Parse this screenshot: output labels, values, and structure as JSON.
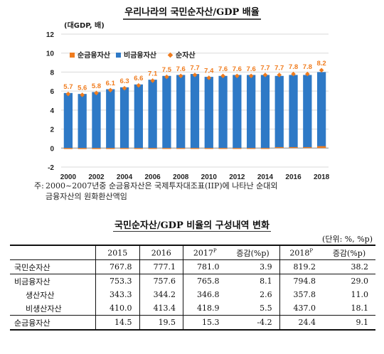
{
  "chart_title": "우리나라의 국민순자산/GDP 배율",
  "note": {
    "prefix": "주:",
    "line1": "2000~2007년중 순금융자산은 국제투자대조표(IIP)에 나타난 순대외",
    "line2": "금융자산의 원화환산액임"
  },
  "chart_data": {
    "type": "bar",
    "title": "우리나라의 국민순자산/GDP 배율",
    "ylabel": "(대GDP, 배)",
    "ylim": [
      -2,
      12
    ],
    "yticks": [
      -2,
      0,
      2,
      4,
      6,
      8,
      10,
      12
    ],
    "x": [
      2000,
      2001,
      2002,
      2003,
      2004,
      2005,
      2006,
      2007,
      2008,
      2009,
      2010,
      2011,
      2012,
      2013,
      2014,
      2015,
      2016,
      2017,
      2018
    ],
    "xtick_labels": [
      "2000",
      "2002",
      "2004",
      "2006",
      "2008",
      "2010",
      "2012",
      "2014",
      "2016",
      "2018"
    ],
    "legend_position": "top-left",
    "series": [
      {
        "name": "순금융자산",
        "kind": "bar",
        "color": "#f07c1e",
        "values": [
          -0.1,
          -0.1,
          -0.1,
          -0.1,
          -0.05,
          -0.05,
          -0.05,
          -0.05,
          -0.05,
          -0.05,
          -0.05,
          -0.05,
          -0.05,
          -0.05,
          0.0,
          0.1,
          0.1,
          0.1,
          0.2
        ]
      },
      {
        "name": "비금융자산",
        "kind": "bar",
        "color": "#2e79c6",
        "values": [
          5.8,
          5.7,
          5.9,
          6.2,
          6.4,
          6.7,
          7.2,
          7.6,
          7.7,
          7.8,
          7.5,
          7.6,
          7.7,
          7.7,
          7.7,
          7.6,
          7.7,
          7.7,
          8.0
        ]
      },
      {
        "name": "순자산",
        "kind": "marker",
        "color": "#f07c1e",
        "values": [
          5.7,
          5.6,
          5.8,
          6.1,
          6.3,
          6.6,
          7.1,
          7.5,
          7.6,
          7.7,
          7.4,
          7.6,
          7.6,
          7.6,
          7.7,
          7.7,
          7.8,
          7.8,
          8.2
        ],
        "labels": [
          "5.7",
          "5.6",
          "5.8",
          "6.1",
          "6.3",
          "6.6",
          "7.1",
          "7.5",
          "7.6",
          "7.7",
          "7.4",
          "7.6",
          "7.6",
          "7.6",
          "7.7",
          "7.7",
          "7.8",
          "7.8",
          "8.2"
        ]
      }
    ]
  },
  "table": {
    "title": "국민순자산/GDP 비율의 구성내역 변화",
    "unit": "(단위: %, %p)",
    "headers": [
      {
        "text": "2015",
        "sup": ""
      },
      {
        "text": "2016",
        "sup": ""
      },
      {
        "text": "2017",
        "sup": "P"
      },
      {
        "text": "증감(%p)",
        "sup": ""
      },
      {
        "text": "2018",
        "sup": "P"
      },
      {
        "text": "증감(%p)",
        "sup": ""
      }
    ],
    "rows": [
      {
        "label": "국민순자산",
        "values": [
          "767.8",
          "777.1",
          "781.0",
          "3.9",
          "819.2",
          "38.2"
        ]
      },
      {
        "label": "비금융자산",
        "values": [
          "753.3",
          "757.6",
          "765.8",
          "8.1",
          "794.8",
          "29.0"
        ]
      },
      {
        "label": "생산자산",
        "values": [
          "343.3",
          "344.2",
          "346.8",
          "2.6",
          "357.8",
          "11.0"
        ]
      },
      {
        "label": "비생산자산",
        "values": [
          "410.0",
          "413.4",
          "418.9",
          "5.5",
          "437.0",
          "18.1"
        ]
      },
      {
        "label": "순금융자산",
        "values": [
          "14.5",
          "19.5",
          "15.3",
          "-4.2",
          "24.4",
          "9.1"
        ]
      }
    ]
  }
}
